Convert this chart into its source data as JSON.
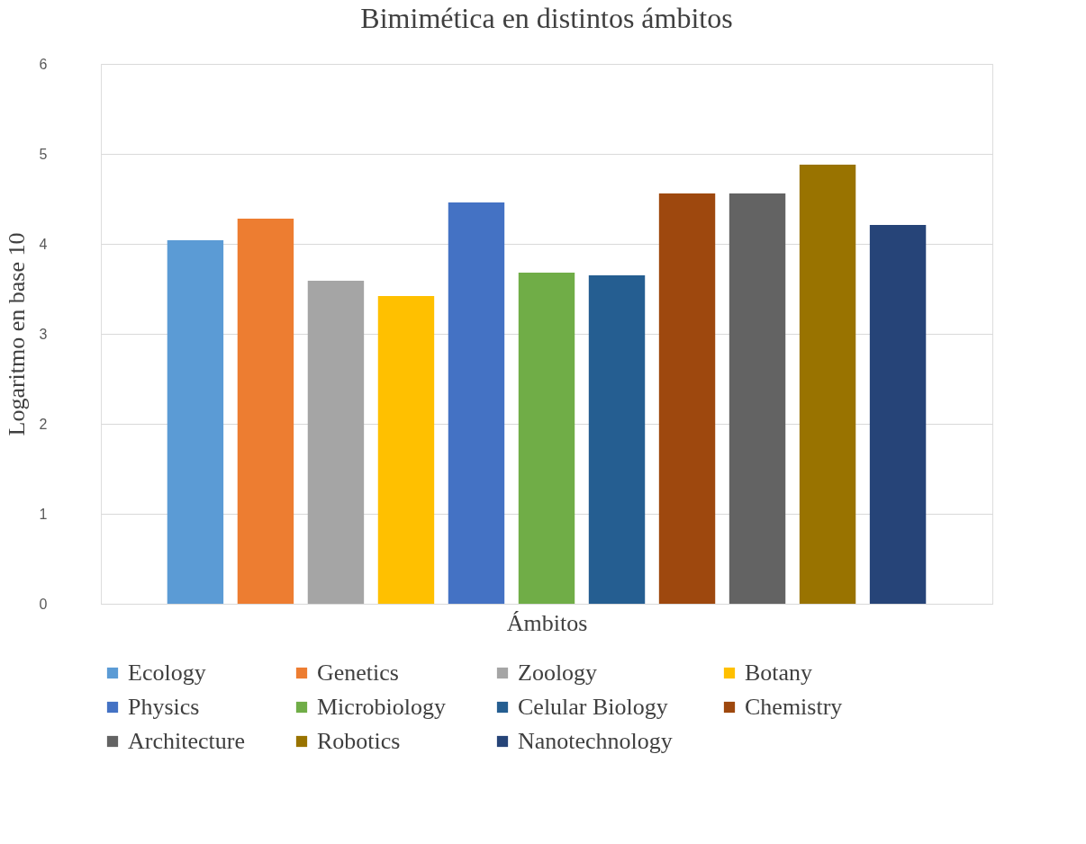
{
  "chart_data": {
    "type": "bar",
    "title": "Bimimética en distintos ámbitos",
    "xlabel": "Ámbitos",
    "ylabel": "Logaritmo en base 10",
    "categories": [
      null
    ],
    "series": [
      {
        "name": "Ecology",
        "color": "#5b9bd5",
        "values": [
          4.04
        ]
      },
      {
        "name": "Genetics",
        "color": "#ed7d31",
        "values": [
          4.28
        ]
      },
      {
        "name": "Zoology",
        "color": "#a5a5a5",
        "values": [
          3.59
        ]
      },
      {
        "name": "Botany",
        "color": "#ffc000",
        "values": [
          3.42
        ]
      },
      {
        "name": "Physics",
        "color": "#4472c4",
        "values": [
          4.46
        ]
      },
      {
        "name": "Microbiology",
        "color": "#70ad47",
        "values": [
          3.68
        ]
      },
      {
        "name": "Celular Biology",
        "color": "#255e91",
        "values": [
          3.65
        ]
      },
      {
        "name": "Chemistry",
        "color": "#9e480e",
        "values": [
          4.56
        ]
      },
      {
        "name": "Architecture",
        "color": "#636363",
        "values": [
          4.56
        ]
      },
      {
        "name": "Robotics",
        "color": "#997300",
        "values": [
          4.88
        ]
      },
      {
        "name": "Nanotechnology",
        "color": "#264478",
        "values": [
          4.21
        ]
      }
    ],
    "ylim": [
      0,
      6
    ],
    "yticks": [
      0,
      1,
      2,
      3,
      4,
      5,
      6
    ],
    "grid": "y",
    "legend": "bottom",
    "tick_labels": "y"
  }
}
